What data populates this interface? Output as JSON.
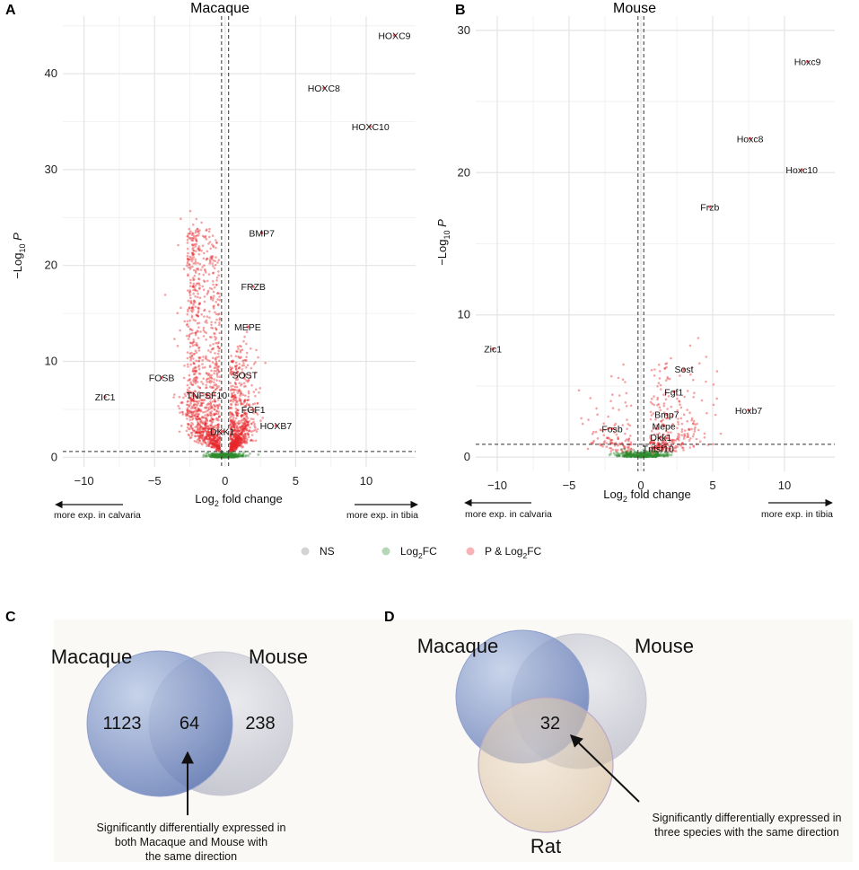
{
  "colors": {
    "ns": "#9e9e9e",
    "log2fc": "#2e8b2e",
    "p_and_log2fc": "#e8262a",
    "grid": "#e4e4e4",
    "macaque_circle": "#6d86c0",
    "mouse_circle": "#c9cbd4",
    "rat_circle": "#dcc6ab"
  },
  "legend": {
    "items": [
      {
        "label": "NS",
        "color": "#9e9e9e"
      },
      {
        "label": "Log2FC",
        "main": "Log",
        "sub": "2",
        "suffix": "FC",
        "color": "#2e8b2e"
      },
      {
        "label": "P & Log2FC",
        "main": "P & Log",
        "sub": "2",
        "suffix": "FC",
        "color": "#e8262a"
      }
    ]
  },
  "chart_data": [
    {
      "id": "A",
      "type": "scatter",
      "title": "Macaque",
      "xlabel": "Log2 fold change",
      "ylabel": "-Log10 P",
      "xlim": [
        -11.5,
        13.5
      ],
      "ylim": [
        -1,
        46
      ],
      "xticks": [
        -10,
        -5,
        0,
        5,
        10
      ],
      "yticks": [
        0,
        10,
        20,
        30,
        40
      ],
      "vlines": [
        -0.25,
        0.25
      ],
      "hline": 0.6,
      "direction_left": "more exp. in calvaria",
      "direction_right": "more exp. in tibia",
      "genes": [
        {
          "name": "HOXC9",
          "x": 12.0,
          "y": 44.0
        },
        {
          "name": "HOXC8",
          "x": 7.0,
          "y": 38.5
        },
        {
          "name": "HOXC10",
          "x": 10.3,
          "y": 34.5
        },
        {
          "name": "BMP7",
          "x": 2.6,
          "y": 23.4
        },
        {
          "name": "FRZB",
          "x": 2.0,
          "y": 17.8
        },
        {
          "name": "MEPE",
          "x": 1.6,
          "y": 13.6
        },
        {
          "name": "SOST",
          "x": 1.4,
          "y": 8.6
        },
        {
          "name": "TNFSF10",
          "x": -1.3,
          "y": 6.5
        },
        {
          "name": "FGF1",
          "x": 2.0,
          "y": 5.0
        },
        {
          "name": "DKK1",
          "x": -0.2,
          "y": 2.7
        },
        {
          "name": "HOXB7",
          "x": 3.6,
          "y": 3.3
        },
        {
          "name": "FOSB",
          "x": -4.5,
          "y": 8.3
        },
        {
          "name": "ZIC1",
          "x": -8.5,
          "y": 6.3
        }
      ]
    },
    {
      "id": "B",
      "type": "scatter",
      "title": "Mouse",
      "xlabel": "Log2 fold change",
      "ylabel": "-Log10 P",
      "xlim": [
        -11.5,
        13.5
      ],
      "ylim": [
        -1,
        31
      ],
      "xticks": [
        -10,
        -5,
        0,
        5,
        10
      ],
      "yticks": [
        0,
        10,
        20,
        30
      ],
      "vlines": [
        -0.2,
        0.2
      ],
      "hline": 0.9,
      "direction_left": "more exp. in calvaria",
      "direction_right": "more exp. in tibia",
      "genes": [
        {
          "name": "Hoxc9",
          "x": 11.6,
          "y": 27.8
        },
        {
          "name": "Hoxc8",
          "x": 7.6,
          "y": 22.4
        },
        {
          "name": "Hoxc10",
          "x": 11.2,
          "y": 20.2
        },
        {
          "name": "Frzb",
          "x": 4.8,
          "y": 17.6
        },
        {
          "name": "Sost",
          "x": 3.0,
          "y": 6.2
        },
        {
          "name": "Fgf1",
          "x": 2.3,
          "y": 4.6
        },
        {
          "name": "Hoxb7",
          "x": 7.5,
          "y": 3.3
        },
        {
          "name": "Bmp7",
          "x": 1.8,
          "y": 3.0
        },
        {
          "name": "Mepe",
          "x": 1.6,
          "y": 2.2
        },
        {
          "name": "Dkk1",
          "x": 1.4,
          "y": 1.4
        },
        {
          "name": "Tnfsf10",
          "x": 1.2,
          "y": 0.6
        },
        {
          "name": "Fosb",
          "x": -2.0,
          "y": 2.0
        },
        {
          "name": "Zic1",
          "x": -10.3,
          "y": 7.6
        }
      ]
    }
  ],
  "panelC": {
    "letter": "C",
    "left_label": "Macaque",
    "right_label": "Mouse",
    "left_only": "1123",
    "overlap": "64",
    "right_only": "238",
    "annotation_lines": [
      "Significantly differentially expressed in",
      "both Macaque and Mouse with",
      "the same direction"
    ]
  },
  "panelD": {
    "letter": "D",
    "labels": [
      "Macaque",
      "Mouse",
      "Rat"
    ],
    "overlap": "32",
    "annotation_lines": [
      "Significantly differentially expressed in",
      "three species with the same direction"
    ]
  }
}
